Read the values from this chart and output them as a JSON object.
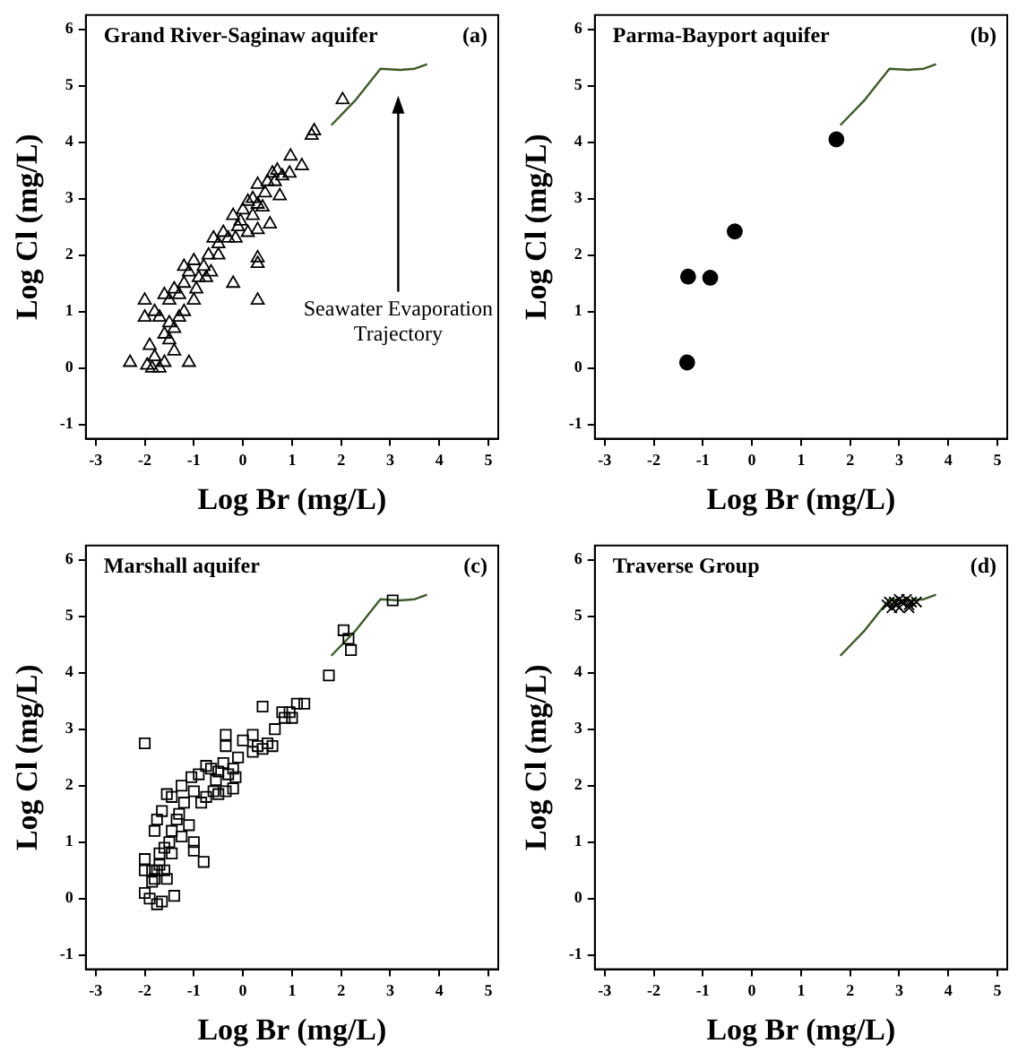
{
  "chart_data": [
    {
      "type": "scatter",
      "title": "Grand River-Saginaw aquifer",
      "xlabel": "Log Br (mg/L)",
      "ylabel": "Log Cl (mg/L)",
      "xlim": [
        -3.2,
        5.2
      ],
      "ylim": [
        -1.25,
        6.25
      ],
      "xticks": [
        -3,
        -2,
        -1,
        0,
        1,
        2,
        3,
        4,
        5
      ],
      "yticks": [
        -1,
        0,
        1,
        2,
        3,
        4,
        5,
        6
      ],
      "grid": false,
      "legend": false,
      "annotations": [
        "(a)",
        "Seawater Evaporation Trajectory"
      ],
      "series": [
        {
          "type": "scatter",
          "marker": "triangle",
          "color": "#000000",
          "x": [
            2.03,
            1.45,
            1.4,
            0.97,
            1.2,
            0.95,
            0.8,
            0.75,
            0.6,
            0.5,
            0.7,
            0.3,
            0.3,
            0.4,
            0.3,
            0.55,
            0.3,
            0.3,
            0.3,
            0.1,
            0,
            -0.05,
            0.1,
            -0.2,
            -0.2,
            -0.1,
            -0.3,
            -0.4,
            -0.5,
            -0.6,
            -0.5,
            -0.7,
            -0.8,
            -0.9,
            -1.0,
            -1.1,
            -1.2,
            -1.2,
            -1.3,
            -1.4,
            -1.5,
            -1.6,
            -1.3,
            -1.4,
            -1.5,
            -1.6,
            -1.7,
            -1.8,
            -2.0,
            -2.0,
            -1.9,
            -1.4,
            -1.1,
            -1.6,
            -2.3,
            -1.95,
            -1.85,
            -1.7,
            -1.8,
            -1.5,
            -0.95,
            -0.75,
            -0.65,
            -0.15,
            0.2,
            0.45,
            0.65,
            0.2,
            -1.2,
            -1.0
          ],
          "values": [
            4.75,
            4.2,
            4.12,
            3.75,
            3.58,
            3.45,
            3.4,
            3.05,
            3.45,
            3.3,
            3.5,
            3.25,
            2.9,
            2.85,
            2.45,
            2.55,
            1.95,
            1.85,
            1.2,
            2.95,
            2.8,
            2.6,
            2.4,
            2.7,
            1.5,
            2.5,
            2.3,
            2.4,
            2.2,
            2.3,
            2.0,
            2.0,
            1.8,
            1.6,
            1.9,
            1.7,
            1.5,
            1.8,
            1.3,
            1.4,
            1.2,
            1.3,
            0.9,
            0.7,
            0.8,
            0.6,
            0.9,
            1.0,
            1.2,
            0.9,
            0.4,
            0.3,
            0.1,
            0.1,
            0.1,
            0.05,
            0.0,
            0.0,
            0.2,
            0.5,
            1.4,
            1.6,
            1.7,
            2.3,
            3.0,
            3.1,
            3.3,
            2.7,
            1.0,
            1.2
          ]
        },
        {
          "type": "line",
          "marker": "none",
          "color": "#3d5a2a",
          "x": [
            1.8,
            2.3,
            2.8,
            3.2,
            3.5,
            3.75
          ],
          "values": [
            4.3,
            4.75,
            5.3,
            5.28,
            5.3,
            5.38
          ]
        }
      ]
    },
    {
      "type": "scatter",
      "title": "Parma-Bayport aquifer",
      "xlabel": "Log Br (mg/L)",
      "ylabel": "Log Cl (mg/L)",
      "xlim": [
        -3.2,
        5.2
      ],
      "ylim": [
        -1.25,
        6.25
      ],
      "xticks": [
        -3,
        -2,
        -1,
        0,
        1,
        2,
        3,
        4,
        5
      ],
      "yticks": [
        -1,
        0,
        1,
        2,
        3,
        4,
        5,
        6
      ],
      "grid": false,
      "legend": false,
      "annotations": [
        "(b)"
      ],
      "series": [
        {
          "type": "scatter",
          "marker": "circle",
          "color": "#000000",
          "x": [
            1.72,
            -0.35,
            -0.85,
            -1.3,
            -1.32
          ],
          "values": [
            4.05,
            2.42,
            1.6,
            1.62,
            0.1
          ]
        },
        {
          "type": "line",
          "marker": "none",
          "color": "#3d5a2a",
          "x": [
            1.8,
            2.3,
            2.8,
            3.2,
            3.5,
            3.75
          ],
          "values": [
            4.3,
            4.75,
            5.3,
            5.28,
            5.3,
            5.38
          ]
        }
      ]
    },
    {
      "type": "scatter",
      "title": "Marshall aquifer",
      "xlabel": "Log Br (mg/L)",
      "ylabel": "Log Cl (mg/L)",
      "xlim": [
        -3.2,
        5.2
      ],
      "ylim": [
        -1.25,
        6.25
      ],
      "xticks": [
        -3,
        -2,
        -1,
        0,
        1,
        2,
        3,
        4,
        5
      ],
      "yticks": [
        -1,
        0,
        1,
        2,
        3,
        4,
        5,
        6
      ],
      "grid": false,
      "legend": false,
      "annotations": [
        "(c)"
      ],
      "series": [
        {
          "type": "scatter",
          "marker": "square",
          "color": "#000000",
          "x": [
            3.05,
            2.05,
            2.15,
            2.2,
            1.75,
            1.1,
            1.25,
            0.95,
            0.8,
            0.85,
            1.0,
            0.65,
            0.4,
            0.5,
            0.4,
            0.2,
            0.3,
            0,
            -0.35,
            -0.35,
            -0.1,
            -0.2,
            -0.3,
            -0.4,
            -0.5,
            -0.55,
            -0.65,
            -0.75,
            -0.9,
            -0.35,
            -0.5,
            -0.2,
            -0.75,
            -0.85,
            -1.0,
            -1.05,
            -1.25,
            -1.45,
            -1.55,
            -1.65,
            -1.75,
            -1.8,
            -1.2,
            -1.3,
            -1.1,
            -1.25,
            -1.35,
            -1.45,
            -1.5,
            -1.6,
            -1.7,
            -1.7,
            -1.75,
            -1.6,
            -1.55,
            -1.85,
            -1.8,
            -2.0,
            -2.0,
            -1.85,
            -2.0,
            -1.9,
            -1.75,
            -1.65,
            -1.4,
            -1.45,
            -1.0,
            -0.8,
            -1.0,
            -2.0,
            -0.6,
            -0.15,
            0.2,
            0.6
          ],
          "values": [
            5.28,
            4.75,
            4.6,
            4.4,
            3.95,
            3.45,
            3.45,
            3.3,
            3.3,
            3.2,
            3.2,
            3.0,
            3.4,
            2.75,
            2.65,
            2.9,
            2.7,
            2.8,
            2.9,
            2.7,
            2.5,
            2.3,
            2.2,
            2.4,
            2.25,
            2.1,
            2.3,
            2.35,
            2.2,
            1.9,
            1.85,
            1.95,
            1.8,
            1.7,
            1.9,
            2.15,
            2.0,
            1.8,
            1.85,
            1.55,
            1.4,
            1.2,
            1.7,
            1.5,
            1.3,
            1.1,
            1.4,
            1.2,
            1.0,
            0.9,
            0.8,
            0.6,
            0.5,
            0.5,
            0.35,
            0.5,
            0.35,
            0.5,
            0.7,
            0.3,
            0.1,
            0.0,
            -0.1,
            -0.05,
            0.05,
            0.8,
            0.85,
            0.65,
            1.0,
            2.75,
            1.9,
            2.15,
            2.6,
            2.7
          ]
        },
        {
          "type": "line",
          "marker": "none",
          "color": "#3d5a2a",
          "x": [
            1.8,
            2.3,
            2.8,
            3.2,
            3.5,
            3.75
          ],
          "values": [
            4.3,
            4.75,
            5.3,
            5.28,
            5.3,
            5.38
          ]
        }
      ]
    },
    {
      "type": "scatter",
      "title": "Traverse Group",
      "xlabel": "Log Br (mg/L)",
      "ylabel": "Log Cl (mg/L)",
      "xlim": [
        -3.2,
        5.2
      ],
      "ylim": [
        -1.25,
        6.25
      ],
      "xticks": [
        -3,
        -2,
        -1,
        0,
        1,
        2,
        3,
        4,
        5
      ],
      "yticks": [
        -1,
        0,
        1,
        2,
        3,
        4,
        5,
        6
      ],
      "grid": false,
      "legend": false,
      "annotations": [
        "(d)"
      ],
      "series": [
        {
          "type": "line",
          "marker": "none",
          "color": "#3d5a2a",
          "x": [
            1.8,
            2.3,
            2.8,
            3.2,
            3.5,
            3.75
          ],
          "values": [
            4.3,
            4.75,
            5.3,
            5.28,
            5.3,
            5.38
          ]
        },
        {
          "type": "scatter",
          "marker": "cross",
          "color": "#000000",
          "x": [
            2.75,
            2.85,
            2.9,
            2.95,
            3.0,
            3.05,
            3.15,
            3.2,
            3.25,
            3.35,
            2.8,
            3.0,
            3.2
          ],
          "values": [
            5.2,
            5.15,
            5.25,
            5.2,
            5.15,
            5.25,
            5.3,
            5.2,
            5.25,
            5.25,
            5.25,
            5.3,
            5.15
          ]
        }
      ]
    }
  ]
}
